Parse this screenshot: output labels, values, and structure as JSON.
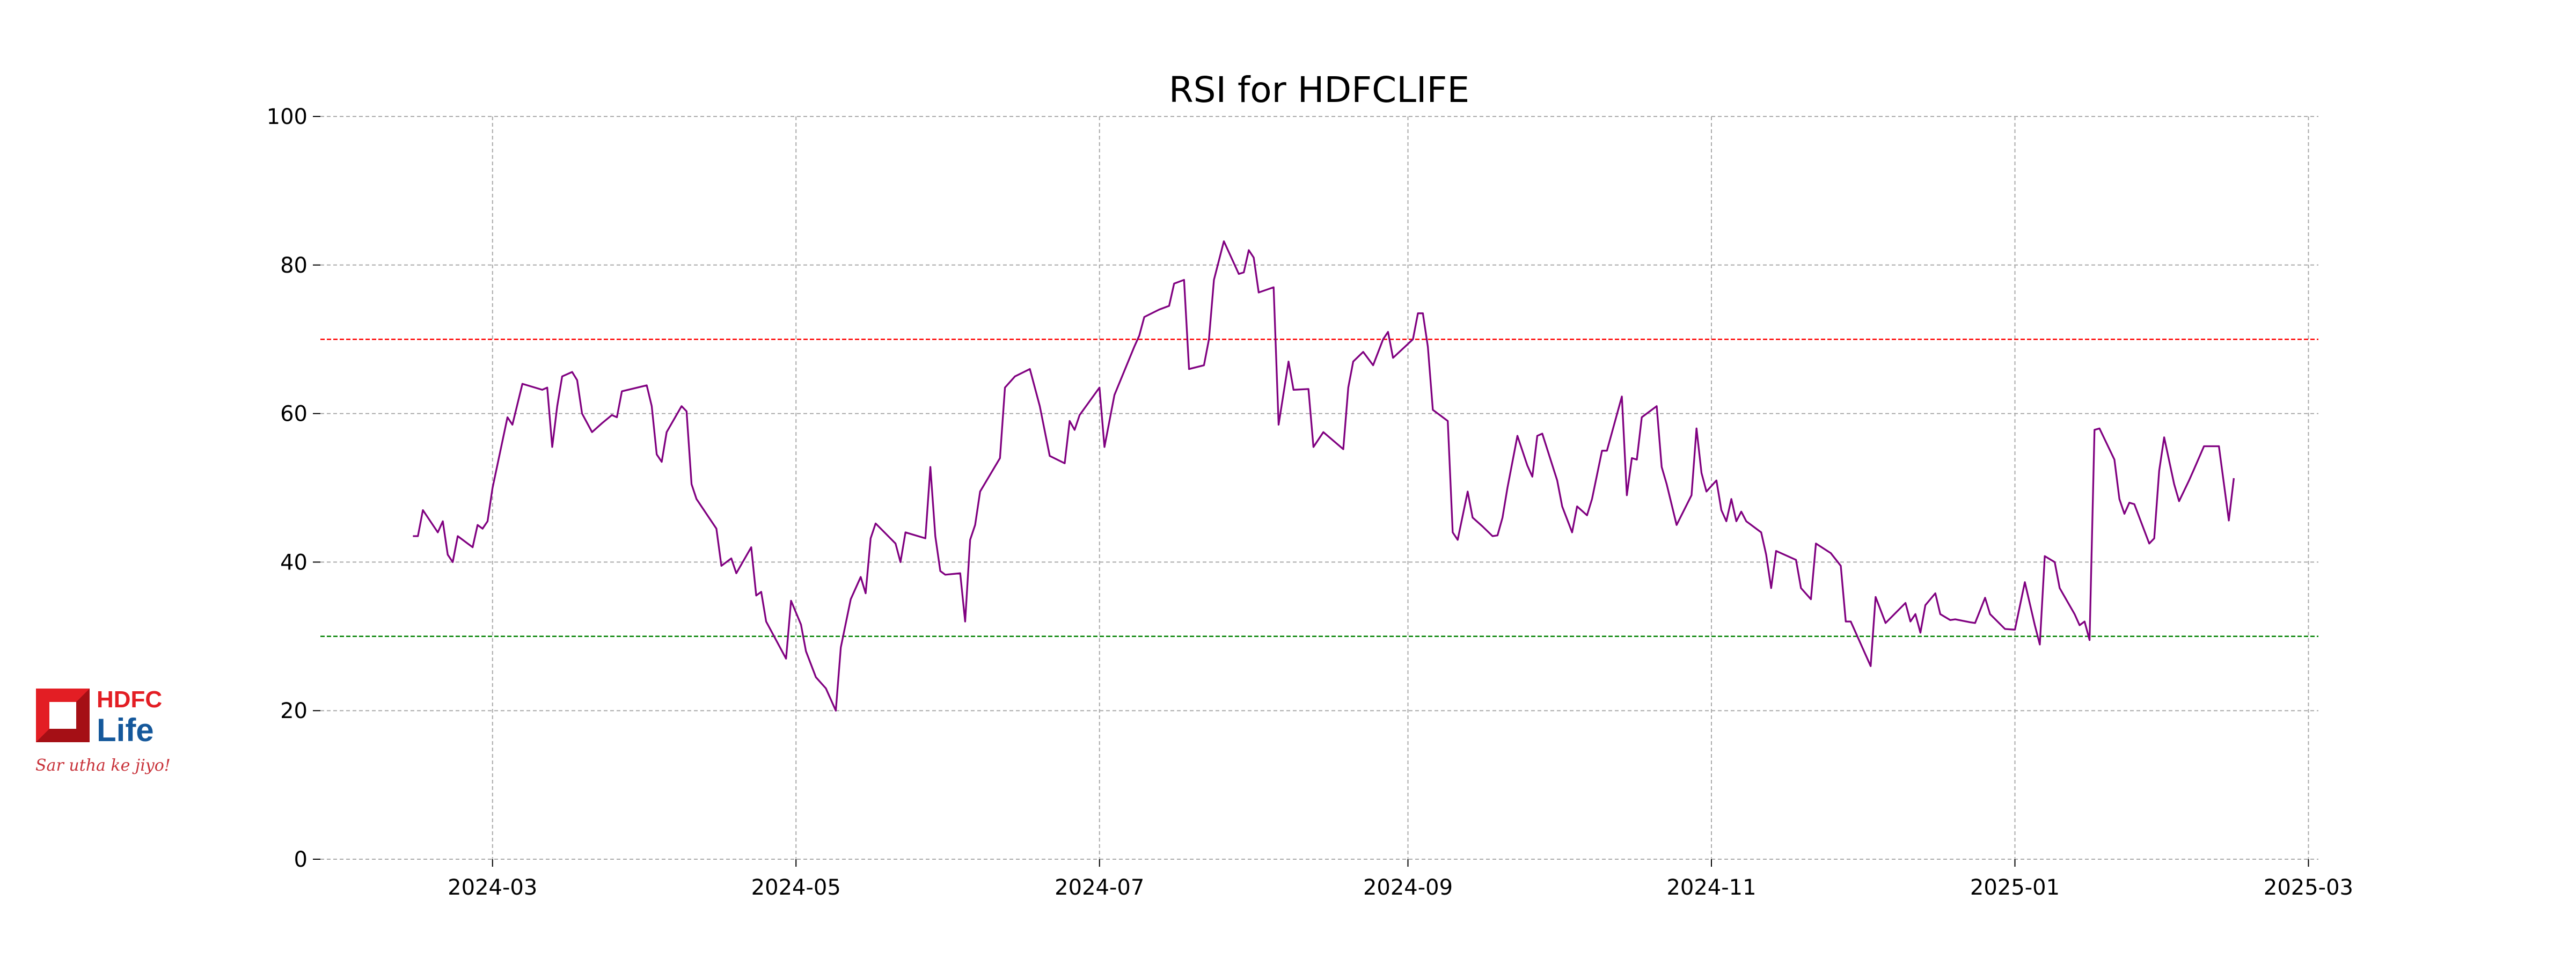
{
  "logo": {
    "line1": "HDFC",
    "line2": "Life",
    "tagline": "Sar utha ke jiyo!",
    "red": "#e31e24",
    "dark_red": "#a50f15",
    "blue": "#15589b"
  },
  "colors": {
    "line": "#800080",
    "overbought": "#ff0000",
    "oversold": "#008000",
    "grid": "#aaaaaa"
  },
  "chart_data": {
    "type": "line",
    "title": "RSI for HDFCLIFE",
    "xlabel": "",
    "ylabel": "",
    "ylim": [
      0,
      100
    ],
    "x_origin_date": "2024-03-01",
    "x_unit": "days since 2024-03-01",
    "xlim_days": [
      -34.6,
      367
    ],
    "grid": true,
    "yticks": [
      0,
      20,
      40,
      60,
      80,
      100
    ],
    "xticks": [
      {
        "label": "2024-03",
        "day": 0
      },
      {
        "label": "2024-05",
        "day": 61
      },
      {
        "label": "2024-07",
        "day": 122
      },
      {
        "label": "2024-09",
        "day": 184
      },
      {
        "label": "2024-11",
        "day": 245
      },
      {
        "label": "2025-01",
        "day": 306
      },
      {
        "label": "2025-03",
        "day": 365
      }
    ],
    "reference_lines": [
      {
        "name": "overbought",
        "value": 70
      },
      {
        "name": "oversold",
        "value": 30
      }
    ],
    "series": [
      {
        "name": "RSI",
        "x_days": [
          -16,
          -15,
          -14,
          -11,
          -10,
          -9,
          -8,
          -7,
          -4,
          -3,
          -2,
          -1,
          0,
          3,
          4,
          6,
          10,
          11,
          12,
          13,
          14,
          16,
          17,
          18,
          20,
          22,
          24,
          25,
          26,
          31,
          32,
          33,
          34,
          35,
          38,
          39,
          40,
          41,
          45,
          46,
          48,
          49,
          52,
          53,
          54,
          55,
          59,
          60,
          62,
          63,
          65,
          67,
          69,
          70,
          72,
          74,
          75,
          76,
          77,
          81,
          82,
          83,
          87,
          88,
          89,
          90,
          91,
          94,
          95,
          96,
          97,
          98,
          102,
          103,
          105,
          108,
          110,
          112,
          115,
          116,
          117,
          118,
          122,
          123,
          125,
          129,
          130,
          131,
          134,
          136,
          137,
          139,
          140,
          143,
          144,
          145,
          147,
          150,
          151,
          152,
          153,
          154,
          157,
          158,
          160,
          161,
          164,
          165,
          167,
          171,
          172,
          173,
          175,
          177,
          179,
          180,
          181,
          185,
          186,
          187,
          188,
          189,
          192,
          193,
          194,
          196,
          197,
          199,
          201,
          202,
          203,
          204,
          206,
          208,
          209,
          210,
          211,
          214,
          215,
          217,
          218,
          220,
          221,
          223,
          224,
          227,
          228,
          229,
          230,
          231,
          234,
          235,
          236,
          238,
          241,
          242,
          243,
          244,
          246,
          247,
          248,
          249,
          250,
          251,
          252,
          255,
          256,
          257,
          258,
          262,
          263,
          265,
          266,
          269,
          271,
          272,
          273,
          277,
          278,
          280,
          284,
          285,
          286,
          287,
          288,
          290,
          291,
          293,
          294,
          297,
          298,
          300,
          301,
          304,
          306,
          308,
          310,
          311,
          312,
          314,
          315,
          318,
          319,
          320,
          321,
          322,
          323,
          326,
          327,
          328,
          329,
          330,
          333,
          334,
          335,
          336,
          338,
          339,
          341,
          342,
          344,
          347,
          349,
          350
        ],
        "values": [
          43.5,
          43.5,
          47,
          44,
          45.5,
          41,
          40,
          43.5,
          42,
          45,
          44.5,
          45.5,
          50,
          59.5,
          58.5,
          64,
          63.2,
          63.5,
          55.5,
          61,
          65,
          65.6,
          64.5,
          60,
          57.5,
          58.7,
          59.8,
          59.5,
          63,
          63.8,
          61,
          54.5,
          53.5,
          57.5,
          61,
          60.3,
          50.5,
          48.5,
          44.5,
          39.5,
          40.5,
          38.5,
          42,
          35.5,
          36,
          32,
          27,
          34.8,
          31.6,
          28,
          24.5,
          23,
          20,
          28.5,
          35,
          38,
          35.8,
          43.2,
          45.2,
          42.5,
          40,
          44,
          43.2,
          52.8,
          43.5,
          38.8,
          38.3,
          38.5,
          32,
          43,
          45,
          49.5,
          54,
          63.5,
          65,
          66,
          61,
          54.3,
          53.3,
          59,
          57.8,
          59.8,
          63.5,
          55.5,
          62.5,
          69,
          70.5,
          73,
          74,
          74.5,
          77.5,
          78,
          66,
          66.5,
          70,
          78,
          83.2,
          78.8,
          79,
          82,
          81,
          76.3,
          77,
          58.5,
          67,
          63.2,
          63.3,
          55.5,
          57.5,
          55.2,
          63.5,
          67,
          68.3,
          66.5,
          70,
          71,
          67.5,
          70,
          73.5,
          73.5,
          69,
          60.5,
          59,
          44,
          43,
          49.5,
          46,
          44.8,
          43.5,
          43.6,
          46,
          50,
          57,
          53,
          51.5,
          57,
          57.3,
          51,
          47.5,
          44,
          47.5,
          46.3,
          48.5,
          55,
          55,
          62.3,
          49,
          54,
          53.8,
          59.5,
          61,
          52.8,
          50.5,
          45,
          49,
          58,
          52,
          49.5,
          51,
          47,
          45.5,
          48.5,
          45.5,
          46.8,
          45.5,
          44,
          41,
          36.5,
          41.5,
          40.3,
          36.5,
          35,
          42.5,
          41.2,
          39.5,
          32,
          32,
          26,
          35.3,
          31.8,
          34.5,
          32,
          33,
          30.5,
          34.2,
          35.8,
          33,
          32.2,
          32.3,
          31.9,
          31.8,
          35.2,
          33,
          31,
          30.9,
          37.3,
          31.5,
          28.9,
          40.8,
          40,
          36.5,
          33,
          31.5,
          32,
          29.5,
          57.8,
          58,
          53.8,
          48.5,
          46.5,
          48,
          47.8,
          42.5,
          43.2,
          52.3,
          56.8,
          50.5,
          48.2,
          51,
          52.5,
          55.6,
          55.6,
          45.6,
          51.3
        ]
      }
    ]
  }
}
